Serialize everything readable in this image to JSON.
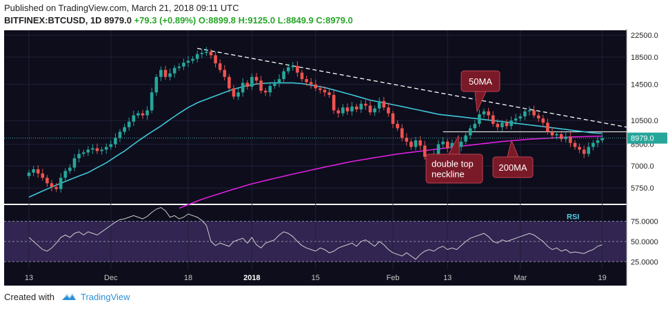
{
  "header": {
    "published": "Published on TradingView.com, March 21, 2018 09:11 UTC",
    "symbol": "BITFINEX:BTCUSD, 1D",
    "last": "8979.0",
    "change": "+79.3 (+0.89%)",
    "ohlc": "O:8899.8 H:9125.0 L:8849.9 C:8979.0"
  },
  "footer": {
    "created": "Created with",
    "brand": "TradingView"
  },
  "colors": {
    "bg": "#0d0d1c",
    "up": "#26a69a",
    "down": "#ef5350",
    "ma50": "#40c8d8",
    "ma200": "#e020e0",
    "rsi": "#d0d0d0",
    "rsi_band": "#3a2a5a"
  },
  "chart_data": {
    "type": "candlestick",
    "scale": "log",
    "yticks": [
      {
        "value": 5750,
        "label": "5750.0"
      },
      {
        "value": 7000,
        "label": "7000.0"
      },
      {
        "value": 8500,
        "label": "8500.0"
      },
      {
        "value": 10500,
        "label": "10500.0"
      },
      {
        "value": 14500,
        "label": "14500.0"
      },
      {
        "value": 18500,
        "label": "18500.0"
      },
      {
        "value": 22500,
        "label": "22500.0"
      }
    ],
    "xticks": [
      {
        "day": 0,
        "label": "13"
      },
      {
        "day": 18,
        "label": "Dec"
      },
      {
        "day": 35,
        "label": "18"
      },
      {
        "day": 49,
        "label": "2018"
      },
      {
        "day": 63,
        "label": "15"
      },
      {
        "day": 80,
        "label": "Feb"
      },
      {
        "day": 92,
        "label": "13"
      },
      {
        "day": 108,
        "label": "Mar"
      },
      {
        "day": 126,
        "label": "19"
      }
    ],
    "current_price_label": "8979.0",
    "current_price": 8979,
    "closes": [
      6600,
      6800,
      6550,
      6300,
      6000,
      5800,
      5700,
      6300,
      6700,
      6900,
      7500,
      7800,
      7900,
      8100,
      8200,
      8000,
      8100,
      8300,
      8500,
      9000,
      9500,
      9900,
      10400,
      11000,
      11200,
      11000,
      11500,
      13500,
      15500,
      16500,
      15500,
      16000,
      16800,
      17000,
      17600,
      17900,
      18200,
      19000,
      19200,
      19400,
      18800,
      17500,
      16500,
      15500,
      14000,
      13000,
      13500,
      14700,
      14200,
      15500,
      15000,
      13700,
      13500,
      14300,
      14600,
      15200,
      16300,
      16900,
      17100,
      16100,
      15200,
      14800,
      14500,
      14000,
      13800,
      13500,
      13200,
      11500,
      11200,
      11800,
      11400,
      11900,
      11600,
      12200,
      12000,
      11300,
      11700,
      12500,
      11800,
      11200,
      10200,
      9800,
      9000,
      8700,
      8300,
      8800,
      8400,
      7600,
      7300,
      7800,
      8500,
      8700,
      8200,
      8600,
      8300,
      8700,
      9200,
      9800,
      10200,
      11100,
      11400,
      11000,
      10200,
      9900,
      10300,
      10000,
      10500,
      10700,
      10900,
      11400,
      11500,
      11000,
      10700,
      10300,
      9500,
      9200,
      9300,
      8900,
      9100,
      8600,
      8300,
      8100,
      7800,
      8300,
      8600,
      8800,
      8979
    ],
    "ma50": [
      5300,
      5400,
      5500,
      5600,
      5700,
      5800,
      5900,
      6000,
      6100,
      6200,
      6300,
      6400,
      6500,
      6600,
      6750,
      6900,
      7050,
      7200,
      7400,
      7600,
      7800,
      8000,
      8250,
      8500,
      8750,
      9000,
      9250,
      9500,
      9750,
      10000,
      10300,
      10600,
      10900,
      11200,
      11500,
      11800,
      12050,
      12300,
      12500,
      12700,
      12900,
      13100,
      13300,
      13500,
      13700,
      13900,
      14050,
      14200,
      14350,
      14450,
      14550,
      14600,
      14650,
      14700,
      14700,
      14700,
      14700,
      14700,
      14700,
      14650,
      14600,
      14500,
      14400,
      14300,
      14200,
      14100,
      13950,
      13800,
      13650,
      13500,
      13350,
      13200,
      13050,
      12900,
      12750,
      12600,
      12500,
      12400,
      12300,
      12200,
      12100,
      12000,
      11900,
      11800,
      11700,
      11600,
      11500,
      11400,
      11300,
      11200,
      11100,
      11050,
      11000,
      10950,
      10900,
      10850,
      10800,
      10750,
      10700,
      10650,
      10600,
      10550,
      10500,
      10450,
      10400,
      10350,
      10300,
      10250,
      10200,
      10150,
      10100,
      10050,
      10000,
      9950,
      9900,
      9850,
      9800,
      9750,
      9700,
      9650,
      9600,
      9550,
      9500,
      9450,
      9400,
      9380,
      9380
    ],
    "ma200": [
      null,
      null,
      null,
      null,
      null,
      null,
      null,
      null,
      null,
      null,
      null,
      null,
      null,
      null,
      null,
      null,
      null,
      null,
      null,
      null,
      null,
      null,
      null,
      null,
      null,
      null,
      null,
      null,
      null,
      null,
      null,
      null,
      null,
      4800,
      4880,
      4960,
      5040,
      5120,
      5200,
      5270,
      5340,
      5410,
      5480,
      5550,
      5620,
      5690,
      5760,
      5830,
      5900,
      5970,
      6030,
      6090,
      6150,
      6210,
      6270,
      6330,
      6390,
      6450,
      6510,
      6570,
      6630,
      6690,
      6750,
      6810,
      6870,
      6930,
      6990,
      7050,
      7110,
      7170,
      7230,
      7290,
      7340,
      7390,
      7440,
      7490,
      7540,
      7590,
      7640,
      7690,
      7740,
      7790,
      7830,
      7870,
      7910,
      7950,
      7990,
      8030,
      8070,
      8110,
      8150,
      8190,
      8230,
      8270,
      8310,
      8350,
      8390,
      8430,
      8470,
      8510,
      8550,
      8590,
      8630,
      8670,
      8710,
      8740,
      8770,
      8800,
      8830,
      8860,
      8890,
      8910,
      8930,
      8950,
      8970,
      8990,
      9010,
      9030,
      9050,
      9070,
      9080,
      9090,
      9100,
      9110,
      9120,
      9130,
      9140
    ],
    "rsi": [
      55,
      50,
      45,
      40,
      38,
      42,
      48,
      55,
      58,
      55,
      60,
      62,
      58,
      62,
      60,
      58,
      62,
      66,
      70,
      74,
      77,
      78,
      80,
      82,
      80,
      78,
      81,
      86,
      90,
      92,
      88,
      80,
      82,
      78,
      80,
      84,
      82,
      80,
      76,
      70,
      50,
      45,
      48,
      46,
      44,
      50,
      52,
      54,
      48,
      55,
      46,
      42,
      48,
      50,
      52,
      58,
      62,
      60,
      56,
      50,
      45,
      42,
      40,
      38,
      42,
      40,
      36,
      38,
      42,
      44,
      46,
      48,
      44,
      50,
      52,
      48,
      44,
      50,
      46,
      40,
      36,
      34,
      32,
      36,
      32,
      28,
      34,
      38,
      40,
      38,
      42,
      44,
      40,
      42,
      40,
      45,
      50,
      54,
      56,
      58,
      60,
      56,
      50,
      48,
      52,
      50,
      52,
      54,
      56,
      58,
      60,
      58,
      54,
      50,
      44,
      40,
      42,
      38,
      40,
      36,
      37,
      36,
      35,
      38,
      40,
      44,
      46
    ],
    "rsi_yticks": [
      {
        "value": 75,
        "label": "75.0000"
      },
      {
        "value": 50,
        "label": "50.0000"
      },
      {
        "value": 25,
        "label": "25.0000"
      }
    ],
    "rsi_label": "RSI",
    "annotations": [
      {
        "text": "50MA"
      },
      {
        "text": "double top\nneckline"
      },
      {
        "text": "200MA"
      }
    ]
  }
}
